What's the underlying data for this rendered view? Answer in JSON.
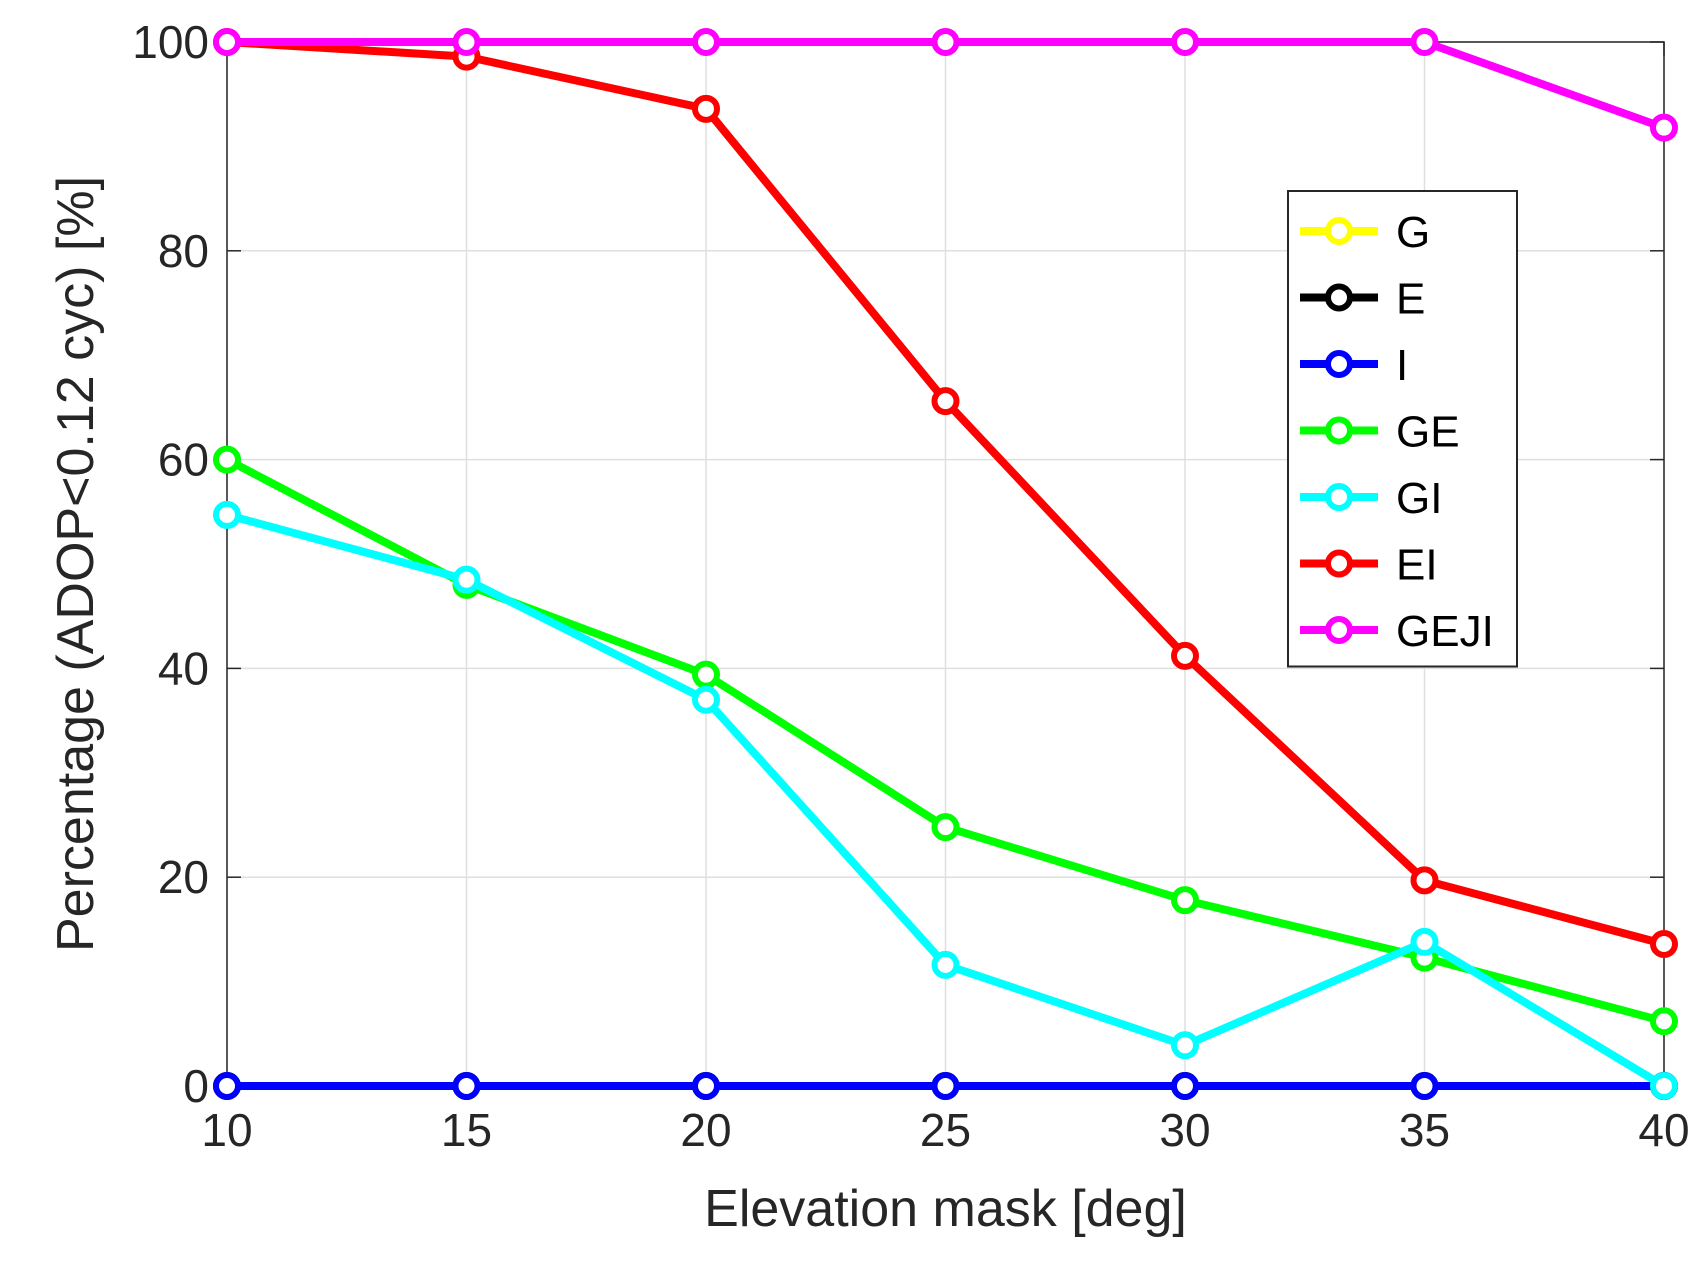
{
  "chart_data": {
    "type": "line",
    "title": "",
    "xlabel": "Elevation mask [deg]",
    "ylabel": "Percentage (ADOP<0.12 cyc) [%]",
    "x": [
      10,
      15,
      20,
      25,
      30,
      35,
      40
    ],
    "xlim": [
      10,
      40
    ],
    "ylim": [
      0,
      100
    ],
    "xticks": [
      10,
      15,
      20,
      25,
      30,
      35,
      40
    ],
    "yticks": [
      0,
      20,
      40,
      60,
      80,
      100
    ],
    "grid": true,
    "legend_position": "upper-right",
    "marker": "circle",
    "series": [
      {
        "name": "G",
        "color": "#ffff00",
        "values": [
          0,
          0,
          0,
          0,
          0,
          0,
          0
        ]
      },
      {
        "name": "E",
        "color": "#000000",
        "values": [
          0,
          0,
          0,
          0,
          0,
          0,
          0
        ]
      },
      {
        "name": "I",
        "color": "#0000ff",
        "values": [
          0,
          0,
          0,
          0,
          0,
          0,
          0
        ]
      },
      {
        "name": "GE",
        "color": "#00ff00",
        "values": [
          60,
          48,
          39.4,
          24.8,
          17.8,
          12.3,
          6.2
        ]
      },
      {
        "name": "GI",
        "color": "#00ffff",
        "values": [
          54.7,
          48.5,
          37,
          11.6,
          3.9,
          13.8,
          0
        ]
      },
      {
        "name": "EI",
        "color": "#ff0000",
        "values": [
          100,
          98.6,
          93.6,
          65.6,
          41.2,
          19.7,
          13.6
        ]
      },
      {
        "name": "GEJI",
        "color": "#ff00ff",
        "values": [
          100,
          100,
          100,
          100,
          100,
          100,
          91.8
        ]
      }
    ]
  }
}
